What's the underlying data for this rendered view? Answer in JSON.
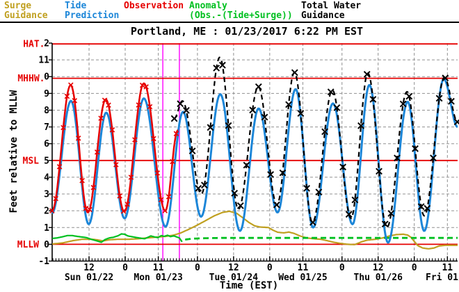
{
  "title": "Portland, ME : 01/23/2017 6:22 PM EST",
  "legend": {
    "surge": {
      "label": "Surge\nGuidance",
      "color": "#c0a020"
    },
    "tide": {
      "label": "Tide\nPrediction",
      "color": "#1c86d8"
    },
    "observation": {
      "label": "Observation",
      "color": "#e60000"
    },
    "anomaly": {
      "label": "Anomaly\n(Obs.-(Tide+Surge))",
      "color": "#00c020"
    },
    "total": {
      "label": "Total Water\nGuidance",
      "color": "#000000"
    }
  },
  "y_axis": {
    "label": "Feet relative to MLLW",
    "min": -1,
    "max": 12,
    "tick_step": 1,
    "tick_overrides": {
      "12": "2",
      "10": "0"
    },
    "reference_lines": [
      {
        "name": "HAT",
        "value": 11.95,
        "display": "HAT.",
        "label_right": 64.5
      },
      {
        "name": "MHHW",
        "value": 9.9,
        "display": "MHHW.",
        "label_right": 64.5
      },
      {
        "name": "MSL",
        "value": 5.0,
        "display": "MSL",
        "label_right": 56
      },
      {
        "name": "MLLW",
        "value": 0.0,
        "display": "MLLW",
        "label_right": 56
      }
    ],
    "reference_color": "#e60000"
  },
  "x_axis": {
    "label": "Time (EST)",
    "hours_origin": "Mon 01/23 00:00 EST",
    "ticks": [
      {
        "t": -12,
        "label": "12"
      },
      {
        "t": 0,
        "label": "0"
      },
      {
        "t": 11,
        "label": "11"
      },
      {
        "t": 24,
        "label": "0"
      },
      {
        "t": 36,
        "label": "12"
      },
      {
        "t": 48,
        "label": "0"
      },
      {
        "t": 59,
        "label": "11"
      },
      {
        "t": 72,
        "label": "0"
      },
      {
        "t": 84,
        "label": "12"
      },
      {
        "t": 96,
        "label": "0"
      },
      {
        "t": 107,
        "label": "11"
      }
    ],
    "day_labels": [
      {
        "t": -12,
        "label": "Sun 01/22"
      },
      {
        "t": 11,
        "label": "Mon 01/23"
      },
      {
        "t": 36,
        "label": "Tue 01/24"
      },
      {
        "t": 59,
        "label": "Wed 01/25"
      },
      {
        "t": 84,
        "label": "Thu 01/26"
      },
      {
        "t": 107,
        "label": "Fri 01/",
        "clip": true
      }
    ]
  },
  "now_lines": {
    "color": "#ff00ff",
    "t": [
      12.5,
      18.0
    ]
  },
  "grid_color": "#909090",
  "chart_data": {
    "type": "line",
    "xlim": [
      -24.3,
      110.4
    ],
    "ylim": [
      -1,
      12
    ],
    "x_unit": "hours from Mon 01/23 00:00 EST",
    "series": [
      {
        "name": "Surge Guidance",
        "color": "#c0a020",
        "interp": "linear",
        "width": 2.2,
        "points": [
          [
            -24.2,
            0.02
          ],
          [
            -20.8,
            0.08
          ],
          [
            -17.3,
            0.22
          ],
          [
            -14.3,
            0.3
          ],
          [
            -10.9,
            0.3
          ],
          [
            -9,
            0.26
          ],
          [
            -7.4,
            0.2
          ],
          [
            -5.3,
            0.27
          ],
          [
            -2.3,
            0.3
          ],
          [
            1.2,
            0.3
          ],
          [
            4.2,
            0.33
          ],
          [
            7.4,
            0.38
          ],
          [
            10.4,
            0.43
          ],
          [
            13.4,
            0.47
          ],
          [
            16.2,
            0.55
          ],
          [
            18.5,
            0.68
          ],
          [
            21.2,
            0.9
          ],
          [
            24,
            1.15
          ],
          [
            26.8,
            1.42
          ],
          [
            29.6,
            1.7
          ],
          [
            32.3,
            1.9
          ],
          [
            34.6,
            1.97
          ],
          [
            37,
            1.85
          ],
          [
            39.3,
            1.55
          ],
          [
            41.1,
            1.3
          ],
          [
            43,
            1.1
          ],
          [
            44.8,
            1.03
          ],
          [
            47.6,
            1.0
          ],
          [
            49,
            0.85
          ],
          [
            50.6,
            0.72
          ],
          [
            52.7,
            0.68
          ],
          [
            54.3,
            0.73
          ],
          [
            56.1,
            0.65
          ],
          [
            58,
            0.5
          ],
          [
            60.3,
            0.38
          ],
          [
            62.8,
            0.33
          ],
          [
            64.9,
            0.3
          ],
          [
            67,
            0.22
          ],
          [
            69.3,
            0.12
          ],
          [
            71.6,
            0.05
          ],
          [
            73.9,
            0.0
          ],
          [
            76.2,
            -0.02
          ],
          [
            78.5,
            0.15
          ],
          [
            80.4,
            0.25
          ],
          [
            83.1,
            0.3
          ],
          [
            85.5,
            0.38
          ],
          [
            87.8,
            0.5
          ],
          [
            90.1,
            0.58
          ],
          [
            92.4,
            0.6
          ],
          [
            93.8,
            0.55
          ],
          [
            94.9,
            0.42
          ],
          [
            96.1,
            0.15
          ],
          [
            97.2,
            -0.08
          ],
          [
            98.8,
            -0.22
          ],
          [
            100.7,
            -0.27
          ],
          [
            102.6,
            -0.22
          ],
          [
            104.2,
            -0.1
          ],
          [
            106.2,
            -0.06
          ],
          [
            108.5,
            -0.06
          ],
          [
            110.4,
            -0.06
          ]
        ]
      },
      {
        "name": "Anomaly (observed)",
        "color": "#00c020",
        "interp": "linear",
        "width": 2.2,
        "points": [
          [
            -24.2,
            0.35
          ],
          [
            -22.6,
            0.38
          ],
          [
            -20.8,
            0.45
          ],
          [
            -19.2,
            0.52
          ],
          [
            -17.6,
            0.52
          ],
          [
            -16.2,
            0.48
          ],
          [
            -14.6,
            0.44
          ],
          [
            -12.9,
            0.4
          ],
          [
            -11.3,
            0.3
          ],
          [
            -9.7,
            0.22
          ],
          [
            -7.9,
            0.12
          ],
          [
            -6.7,
            0.28
          ],
          [
            -5.3,
            0.38
          ],
          [
            -3.9,
            0.42
          ],
          [
            -2.5,
            0.5
          ],
          [
            -1.2,
            0.62
          ],
          [
            -0.2,
            0.6
          ],
          [
            0.9,
            0.5
          ],
          [
            2.3,
            0.45
          ],
          [
            3.9,
            0.4
          ],
          [
            5.3,
            0.36
          ],
          [
            6.5,
            0.33
          ],
          [
            7.6,
            0.42
          ],
          [
            8.5,
            0.5
          ],
          [
            9.7,
            0.44
          ],
          [
            10.9,
            0.4
          ],
          [
            12,
            0.52
          ],
          [
            12.9,
            0.47
          ],
          [
            14.1,
            0.54
          ],
          [
            15,
            0.46
          ],
          [
            16.2,
            0.5
          ],
          [
            17.1,
            0.44
          ],
          [
            18,
            0.38
          ],
          [
            18.9,
            0.15
          ]
        ]
      },
      {
        "name": "Anomaly (persisted)",
        "color": "#00c020",
        "interp": "linear",
        "width": 2.8,
        "dash": "8 5",
        "points": [
          [
            19.9,
            0.28
          ],
          [
            21.9,
            0.33
          ],
          [
            25.4,
            0.36
          ],
          [
            32.3,
            0.38
          ],
          [
            110.4,
            0.38
          ]
        ]
      },
      {
        "name": "Tide Prediction",
        "color": "#1c86d8",
        "interp": "cosine",
        "width": 3,
        "points": [
          [
            -24.3,
            1.85
          ],
          [
            -18,
            8.55
          ],
          [
            -12.1,
            1.2
          ],
          [
            -6.3,
            7.85
          ],
          [
            -0.2,
            1.55
          ],
          [
            6.2,
            8.7
          ],
          [
            13.4,
            1.05
          ],
          [
            19.2,
            7.9
          ],
          [
            25.2,
            1.65
          ],
          [
            31.6,
            8.95
          ],
          [
            38.1,
            0.8
          ],
          [
            44.3,
            8.1
          ],
          [
            50.6,
            1.9
          ],
          [
            56.6,
            9.25
          ],
          [
            62.4,
            1.0
          ],
          [
            69,
            8.4
          ],
          [
            75.5,
            1.2
          ],
          [
            81.1,
            9.5
          ],
          [
            87.3,
            0.1
          ],
          [
            93.8,
            8.5
          ],
          [
            99.3,
            0.8
          ],
          [
            105.8,
            9.85
          ],
          [
            110.4,
            7.0
          ]
        ]
      },
      {
        "name": "Observation",
        "color": "#e60000",
        "interp": "cosine",
        "width": 2.5,
        "marker": "x",
        "marker_step": 1.25,
        "marker_size": 3.2,
        "points": [
          [
            -24.3,
            2.0
          ],
          [
            -18.1,
            9.5
          ],
          [
            -12.4,
            1.9
          ],
          [
            -6.45,
            8.65
          ],
          [
            -0.3,
            1.95
          ],
          [
            6.2,
            9.6
          ],
          [
            13.3,
            2.0
          ],
          [
            17.5,
            6.8
          ]
        ]
      },
      {
        "name": "Total Water Guidance",
        "color": "#000000",
        "interp": "cosine",
        "width": 2.2,
        "dash": "7 5",
        "marker": "x",
        "marker_step": 2.0,
        "marker_size": 4.2,
        "points": [
          [
            16.3,
            7.5
          ],
          [
            19,
            8.55
          ],
          [
            25.3,
            3.0
          ],
          [
            31.4,
            11.15
          ],
          [
            37.6,
            2.1
          ],
          [
            44.2,
            9.4
          ],
          [
            50.4,
            2.35
          ],
          [
            56.2,
            10.25
          ],
          [
            62.2,
            1.3
          ],
          [
            68.8,
            9.2
          ],
          [
            75,
            1.55
          ],
          [
            80.6,
            10.2
          ],
          [
            86.9,
            1.0
          ],
          [
            93.6,
            9.1
          ],
          [
            99.3,
            1.7
          ],
          [
            106,
            9.95
          ],
          [
            110.4,
            7.3
          ]
        ]
      }
    ]
  }
}
